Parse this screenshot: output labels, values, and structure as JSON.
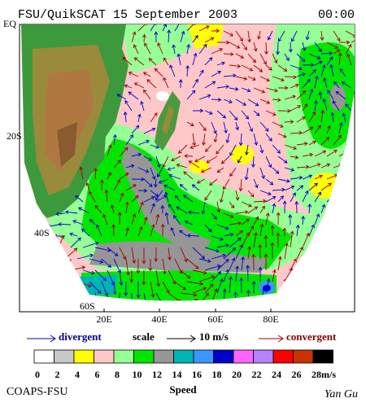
{
  "header": {
    "title": "FSU/QuikSCAT 15 September 2003",
    "time": "00:00"
  },
  "map": {
    "lat_labels": [
      "EQ",
      "20S",
      "40S",
      "60S"
    ],
    "lon_labels": [
      "20E",
      "40E",
      "60E",
      "80E"
    ]
  },
  "legend": {
    "divergent": "divergent",
    "scale": "scale",
    "scale_value": "10 m/s",
    "convergent": "convergent"
  },
  "colorbar": {
    "ticks": [
      0,
      2,
      4,
      6,
      8,
      10,
      12,
      14,
      16,
      18,
      20,
      22,
      24,
      26,
      28
    ],
    "unit": "m/s",
    "label": "Speed",
    "colors": [
      "#ffffff",
      "#c8c8c8",
      "#ffff00",
      "#ffc8c8",
      "#96ff96",
      "#00e600",
      "#969696",
      "#00b4b4",
      "#3c96ff",
      "#0000c8",
      "#ff64ff",
      "#b482ff",
      "#ff0000",
      "#c83200",
      "#000000"
    ]
  },
  "footer": {
    "left": "COAPS-FSU",
    "right": "Yan Gu"
  }
}
